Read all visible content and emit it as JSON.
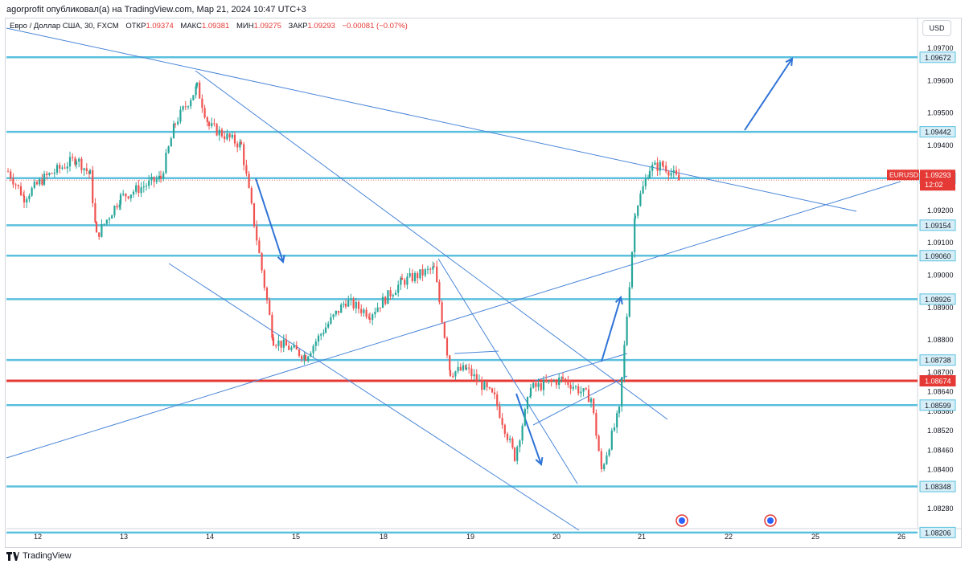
{
  "header": {
    "published_text": "agorprofit опубликовал(а) на TradingView.com, Мар 21, 2024 10:47 UTC+3"
  },
  "legend": {
    "symbol_text": "Евро / Доллар США, 30, FXCM",
    "open_label": "ОТКР",
    "open_value": "1.09374",
    "high_label": "МАКС",
    "high_value": "1.09381",
    "low_label": "МИН",
    "low_value": "1.09275",
    "close_label": "ЗАКР",
    "close_value": "1.09293",
    "change_text": "−0.00081 (−0.07%)"
  },
  "currency_button": "USD",
  "footer": {
    "brand": "TradingView",
    "logo": "tv-logo-icon"
  },
  "colors": {
    "level_line": "#5bc0de",
    "key_level": "#e53935",
    "trend_line": "#4a86d8",
    "arrow": "#2f73d6",
    "candle": "#26a69a",
    "candle_down": "#ef5350",
    "price_badge": "#e53935"
  },
  "chart_data": {
    "type": "candlestick",
    "symbol": "EURUSD",
    "timeframe": "30",
    "last_price": "1.09293",
    "countdown": "12:02",
    "y_ticks": [
      "1.09700",
      "1.09600",
      "1.09500",
      "1.09400",
      "1.09200",
      "1.09100",
      "1.09000",
      "1.08900",
      "1.08800",
      "1.08700",
      "1.08640",
      "1.08580",
      "1.08520",
      "1.08460",
      "1.08400",
      "1.08280"
    ],
    "x_ticks": [
      "12",
      "13",
      "14",
      "15",
      "18",
      "19",
      "20",
      "21",
      "22",
      "25",
      "26"
    ],
    "levels": [
      {
        "price": 1.09672,
        "label": "1.09672",
        "key": false
      },
      {
        "price": 1.09442,
        "label": "1.09442",
        "key": false
      },
      {
        "price": 1.09299,
        "label": "1.09299",
        "key": false
      },
      {
        "price": 1.09154,
        "label": "1.09154",
        "key": false
      },
      {
        "price": 1.0906,
        "label": "1.09060",
        "key": false
      },
      {
        "price": 1.08926,
        "label": "1.08926",
        "key": false
      },
      {
        "price": 1.08738,
        "label": "1.08738",
        "key": false
      },
      {
        "price": 1.08674,
        "label": "1.08674",
        "key": true
      },
      {
        "price": 1.08599,
        "label": "1.08599",
        "key": false
      },
      {
        "price": 1.08348,
        "label": "1.08348",
        "key": false
      },
      {
        "price": 1.08206,
        "label": "1.08206",
        "key": false
      }
    ],
    "path": [
      [
        "12",
        1.0932
      ],
      [
        "12",
        1.0924
      ],
      [
        "12",
        1.093
      ],
      [
        "12",
        1.0936
      ],
      [
        "13",
        1.0931
      ],
      [
        "13",
        1.0912
      ],
      [
        "13",
        1.0924
      ],
      [
        "13",
        1.093
      ],
      [
        "14",
        1.0947
      ],
      [
        "14",
        1.0958
      ],
      [
        "14",
        1.0946
      ],
      [
        "14",
        1.094
      ],
      [
        "15",
        1.088
      ],
      [
        "15",
        1.0875
      ],
      [
        "15",
        1.0884
      ],
      [
        "18",
        1.0892
      ],
      [
        "18",
        1.0888
      ],
      [
        "18",
        1.0898
      ],
      [
        "18",
        1.0902
      ],
      [
        "19",
        1.087
      ],
      [
        "19",
        1.0871
      ],
      [
        "19",
        1.0862
      ],
      [
        "19",
        1.0844
      ],
      [
        "20",
        1.0865
      ],
      [
        "20",
        1.0868
      ],
      [
        "20",
        1.0862
      ],
      [
        "20",
        1.084
      ],
      [
        "20",
        1.0858
      ],
      [
        "21",
        1.092
      ],
      [
        "21",
        1.0933
      ],
      [
        "21",
        1.0934
      ],
      [
        "21",
        1.0929
      ]
    ],
    "trend_lines": 8,
    "arrows": 5,
    "ylim": [
      1.08206,
      1.0972
    ]
  }
}
